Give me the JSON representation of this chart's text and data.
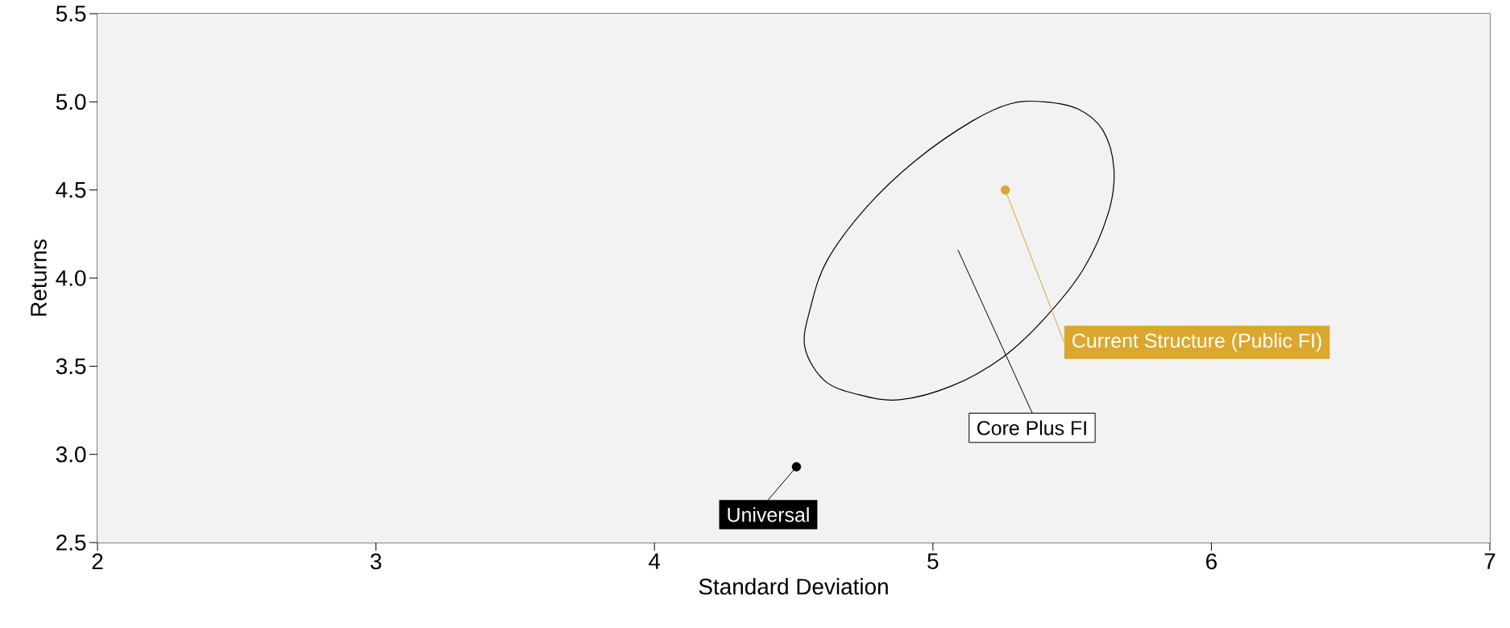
{
  "chart_data": {
    "type": "scatter",
    "xlabel": "Standard Deviation",
    "ylabel": "Returns",
    "xlim": [
      2,
      7
    ],
    "ylim": [
      2.5,
      5.5
    ],
    "xticks": [
      2,
      3,
      4,
      5,
      6,
      7
    ],
    "yticks": [
      {
        "value": 2.5,
        "label": "2.5"
      },
      {
        "value": 3.0,
        "label": "3.0"
      },
      {
        "value": 3.5,
        "label": "3.5"
      },
      {
        "value": 4.0,
        "label": "4.0"
      },
      {
        "value": 4.5,
        "label": "4.5"
      },
      {
        "value": 5.0,
        "label": "5.0"
      },
      {
        "value": 5.5,
        "label": "5.5"
      }
    ],
    "grid": false,
    "marker": "circle",
    "series": [
      {
        "color": "#dba72e",
        "x": [
          5.26
        ],
        "values": [
          4.5
        ]
      },
      {
        "color": "#000000",
        "x": [
          4.51
        ],
        "values": [
          2.93
        ]
      }
    ],
    "annotations": [
      {
        "text": "Core Plus FI"
      },
      {
        "text": "Current Structure (Public FI)",
        "x": 5.26,
        "y": 4.5
      },
      {
        "text": "Universal",
        "x": 4.51,
        "y": 2.93
      }
    ]
  }
}
